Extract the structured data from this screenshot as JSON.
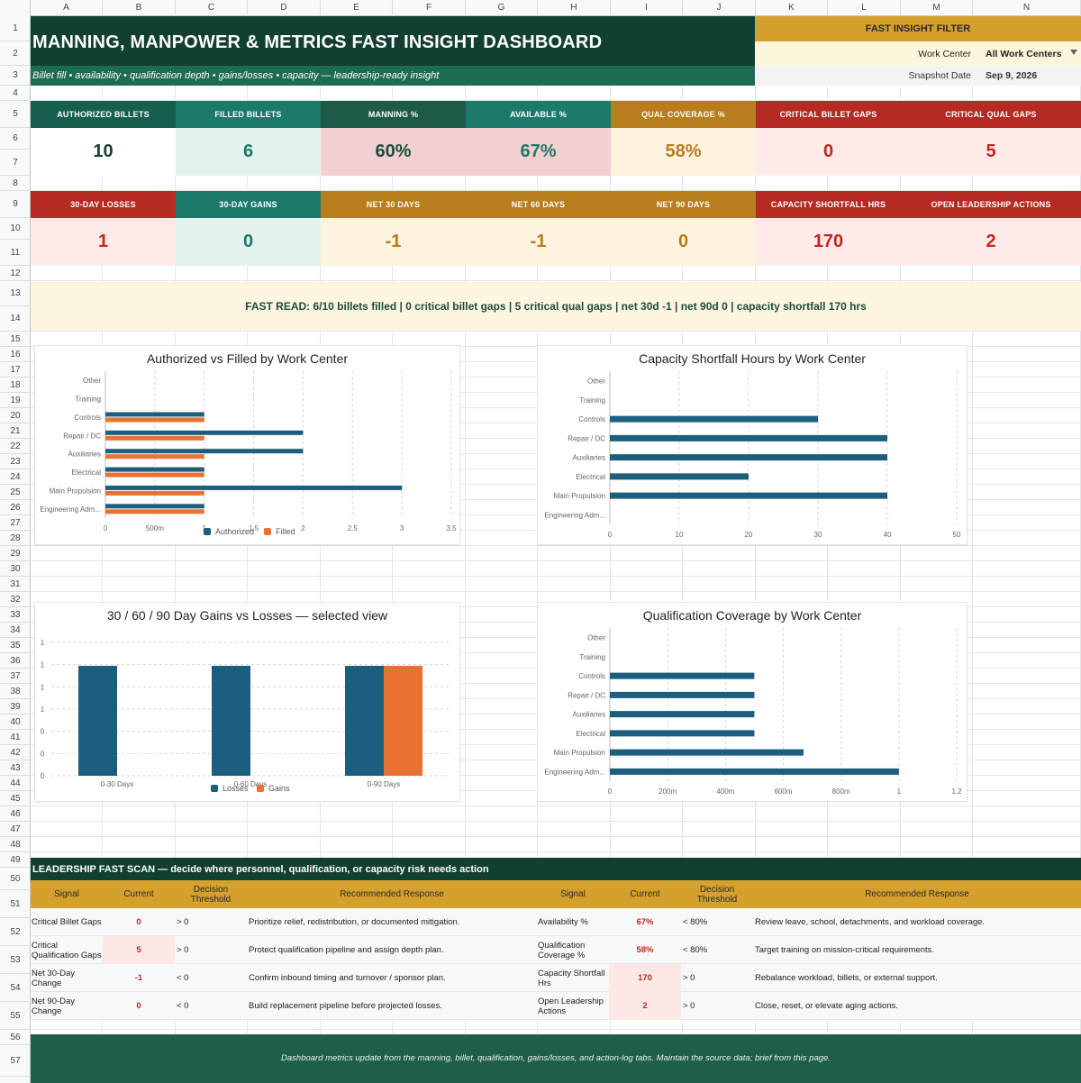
{
  "sheet": {
    "columns": [
      "A",
      "B",
      "C",
      "D",
      "E",
      "F",
      "G",
      "H",
      "I",
      "J",
      "K",
      "L",
      "M",
      "N"
    ],
    "rows": [
      "1",
      "2",
      "3",
      "4",
      "5",
      "6",
      "7",
      "8",
      "9",
      "10",
      "11",
      "12",
      "13",
      "14",
      "15",
      "16",
      "17",
      "18",
      "19",
      "20",
      "21",
      "22",
      "23",
      "24",
      "25",
      "26",
      "27",
      "28",
      "29",
      "30",
      "31",
      "32",
      "33",
      "34",
      "35",
      "36",
      "37",
      "38",
      "39",
      "40",
      "41",
      "42",
      "43",
      "44",
      "45",
      "46",
      "47",
      "48",
      "49",
      "50",
      "51",
      "52",
      "53",
      "54",
      "55",
      "56",
      "57",
      "58"
    ]
  },
  "header": {
    "title": "MANNING, MANPOWER & METRICS FAST INSIGHT DASHBOARD",
    "subtitle": "Billet fill • availability • qualification depth • gains/losses • capacity — leadership-ready insight"
  },
  "filter": {
    "title": "FAST INSIGHT FILTER",
    "work_center_label": "Work Center",
    "work_center_value": "All Work Centers",
    "snapshot_label": "Snapshot Date",
    "snapshot_value": "Sep 9, 2026"
  },
  "kpis_row1": [
    {
      "label": "AUTHORIZED BILLETS",
      "value": "10"
    },
    {
      "label": "FILLED BILLETS",
      "value": "6"
    },
    {
      "label": "MANNING %",
      "value": "60%"
    },
    {
      "label": "AVAILABLE %",
      "value": "67%"
    },
    {
      "label": "QUAL COVERAGE %",
      "value": "58%"
    },
    {
      "label": "CRITICAL BILLET GAPS",
      "value": "0"
    },
    {
      "label": "CRITICAL QUAL GAPS",
      "value": "5"
    }
  ],
  "kpis_row2": [
    {
      "label": "30-DAY LOSSES",
      "value": "1"
    },
    {
      "label": "30-DAY GAINS",
      "value": "0"
    },
    {
      "label": "NET 30 DAYS",
      "value": "-1"
    },
    {
      "label": "NET 60 DAYS",
      "value": "-1"
    },
    {
      "label": "NET 90 DAYS",
      "value": "0"
    },
    {
      "label": "CAPACITY SHORTFALL HRS",
      "value": "170"
    },
    {
      "label": "OPEN LEADERSHIP ACTIONS",
      "value": "2"
    }
  ],
  "colors": {
    "navy_series": "#1b5e7e",
    "orange_series": "#e97132",
    "dark_green": "#123f33",
    "teal": "#1c7a6b",
    "gold": "#b87d1c",
    "red": "#b52a22"
  },
  "fast_read": "FAST READ: 6/10 billets filled | 0 critical billet gaps | 5 critical qual gaps | net 30d -1 | net 90d 0 | capacity shortfall 170 hrs",
  "chart_data": [
    {
      "type": "bar",
      "orientation": "horizontal",
      "title": "Authorized vs Filled by Work Center",
      "categories": [
        "Other",
        "Training",
        "Controls",
        "Repair / DC",
        "Auxiliaries",
        "Electrical",
        "Main Propulsion",
        "Engineering Adm..."
      ],
      "series": [
        {
          "name": "Authorized",
          "values": [
            0,
            0,
            1,
            2,
            2,
            1,
            3,
            1
          ]
        },
        {
          "name": "Filled",
          "values": [
            0,
            0,
            1,
            1,
            1,
            1,
            1,
            1
          ]
        }
      ],
      "xlim": [
        0,
        3.5
      ],
      "ticks": [
        "0",
        "500m",
        "1",
        "1.5",
        "2",
        "2.5",
        "3",
        "3.5"
      ],
      "legend": "bottom"
    },
    {
      "type": "bar",
      "orientation": "horizontal",
      "title": "Capacity Shortfall Hours by Work Center",
      "categories": [
        "Other",
        "Training",
        "Controls",
        "Repair / DC",
        "Auxiliaries",
        "Electrical",
        "Main Propulsion",
        "Engineering Adm..."
      ],
      "series": [
        {
          "values": [
            0,
            0,
            30,
            40,
            40,
            20,
            40,
            0
          ]
        }
      ],
      "xlim": [
        0,
        50
      ],
      "ticks": [
        "0",
        "10",
        "20",
        "30",
        "40",
        "50"
      ]
    },
    {
      "type": "bar",
      "orientation": "vertical",
      "title": "30 / 60 / 90 Day Gains vs Losses — selected view",
      "categories": [
        "0-30 Days",
        "0-60 Days",
        "0-90 Days"
      ],
      "series": [
        {
          "name": "Losses",
          "values": [
            1,
            1,
            1
          ]
        },
        {
          "name": "Gains",
          "values": [
            0,
            0,
            1
          ]
        }
      ],
      "ylim": [
        0,
        1
      ],
      "ticks": [
        "0",
        "0",
        "0",
        "1",
        "1",
        "1",
        "1"
      ],
      "legend": "bottom"
    },
    {
      "type": "bar",
      "orientation": "horizontal",
      "title": "Qualification Coverage by Work Center",
      "categories": [
        "Other",
        "Training",
        "Controls",
        "Repair / DC",
        "Auxiliaries",
        "Electrical",
        "Main Propulsion",
        "Engineering Adm..."
      ],
      "series": [
        {
          "values": [
            0,
            0,
            0.5,
            0.5,
            0.5,
            0.5,
            0.67,
            1
          ]
        }
      ],
      "xlim": [
        0,
        1.2
      ],
      "ticks": [
        "0",
        "200m",
        "400m",
        "600m",
        "800m",
        "1",
        "1.2"
      ]
    }
  ],
  "scan": {
    "title": "LEADERSHIP FAST SCAN — decide where personnel, qualification, or capacity risk needs action",
    "headers": {
      "signal": "Signal",
      "current": "Current",
      "threshold": "Decision Threshold",
      "response": "Recommended Response"
    },
    "left": [
      {
        "signal": "Critical Billet Gaps",
        "current": "0",
        "threshold": "> 0",
        "response": "Prioritize relief, redistribution, or documented mitigation.",
        "alert": false
      },
      {
        "signal": "Critical Qualification Gaps",
        "current": "5",
        "threshold": "> 0",
        "response": "Protect qualification pipeline and assign depth plan.",
        "alert": true
      },
      {
        "signal": "Net 30-Day Change",
        "current": "-1",
        "threshold": "< 0",
        "response": "Confirm inbound timing and turnover / sponsor plan.",
        "alert": false
      },
      {
        "signal": "Net 90-Day Change",
        "current": "0",
        "threshold": "< 0",
        "response": "Build replacement pipeline before projected losses.",
        "alert": false
      }
    ],
    "right": [
      {
        "signal": "Availability %",
        "current": "67%",
        "threshold": "< 80%",
        "response": "Review leave, school, detachments, and workload coverage.",
        "alert": false
      },
      {
        "signal": "Qualification Coverage %",
        "current": "58%",
        "threshold": "< 80%",
        "response": "Target training on mission-critical requirements.",
        "alert": false
      },
      {
        "signal": "Capacity Shortfall Hrs",
        "current": "170",
        "threshold": "> 0",
        "response": "Rebalance workload, billets, or external support.",
        "alert": true
      },
      {
        "signal": "Open Leadership Actions",
        "current": "2",
        "threshold": "> 0",
        "response": "Close, reset, or elevate aging actions.",
        "alert": true
      }
    ]
  },
  "footer": "Dashboard metrics update from the manning, billet, qualification, gains/losses, and action-log tabs. Maintain the source data; brief from this page."
}
